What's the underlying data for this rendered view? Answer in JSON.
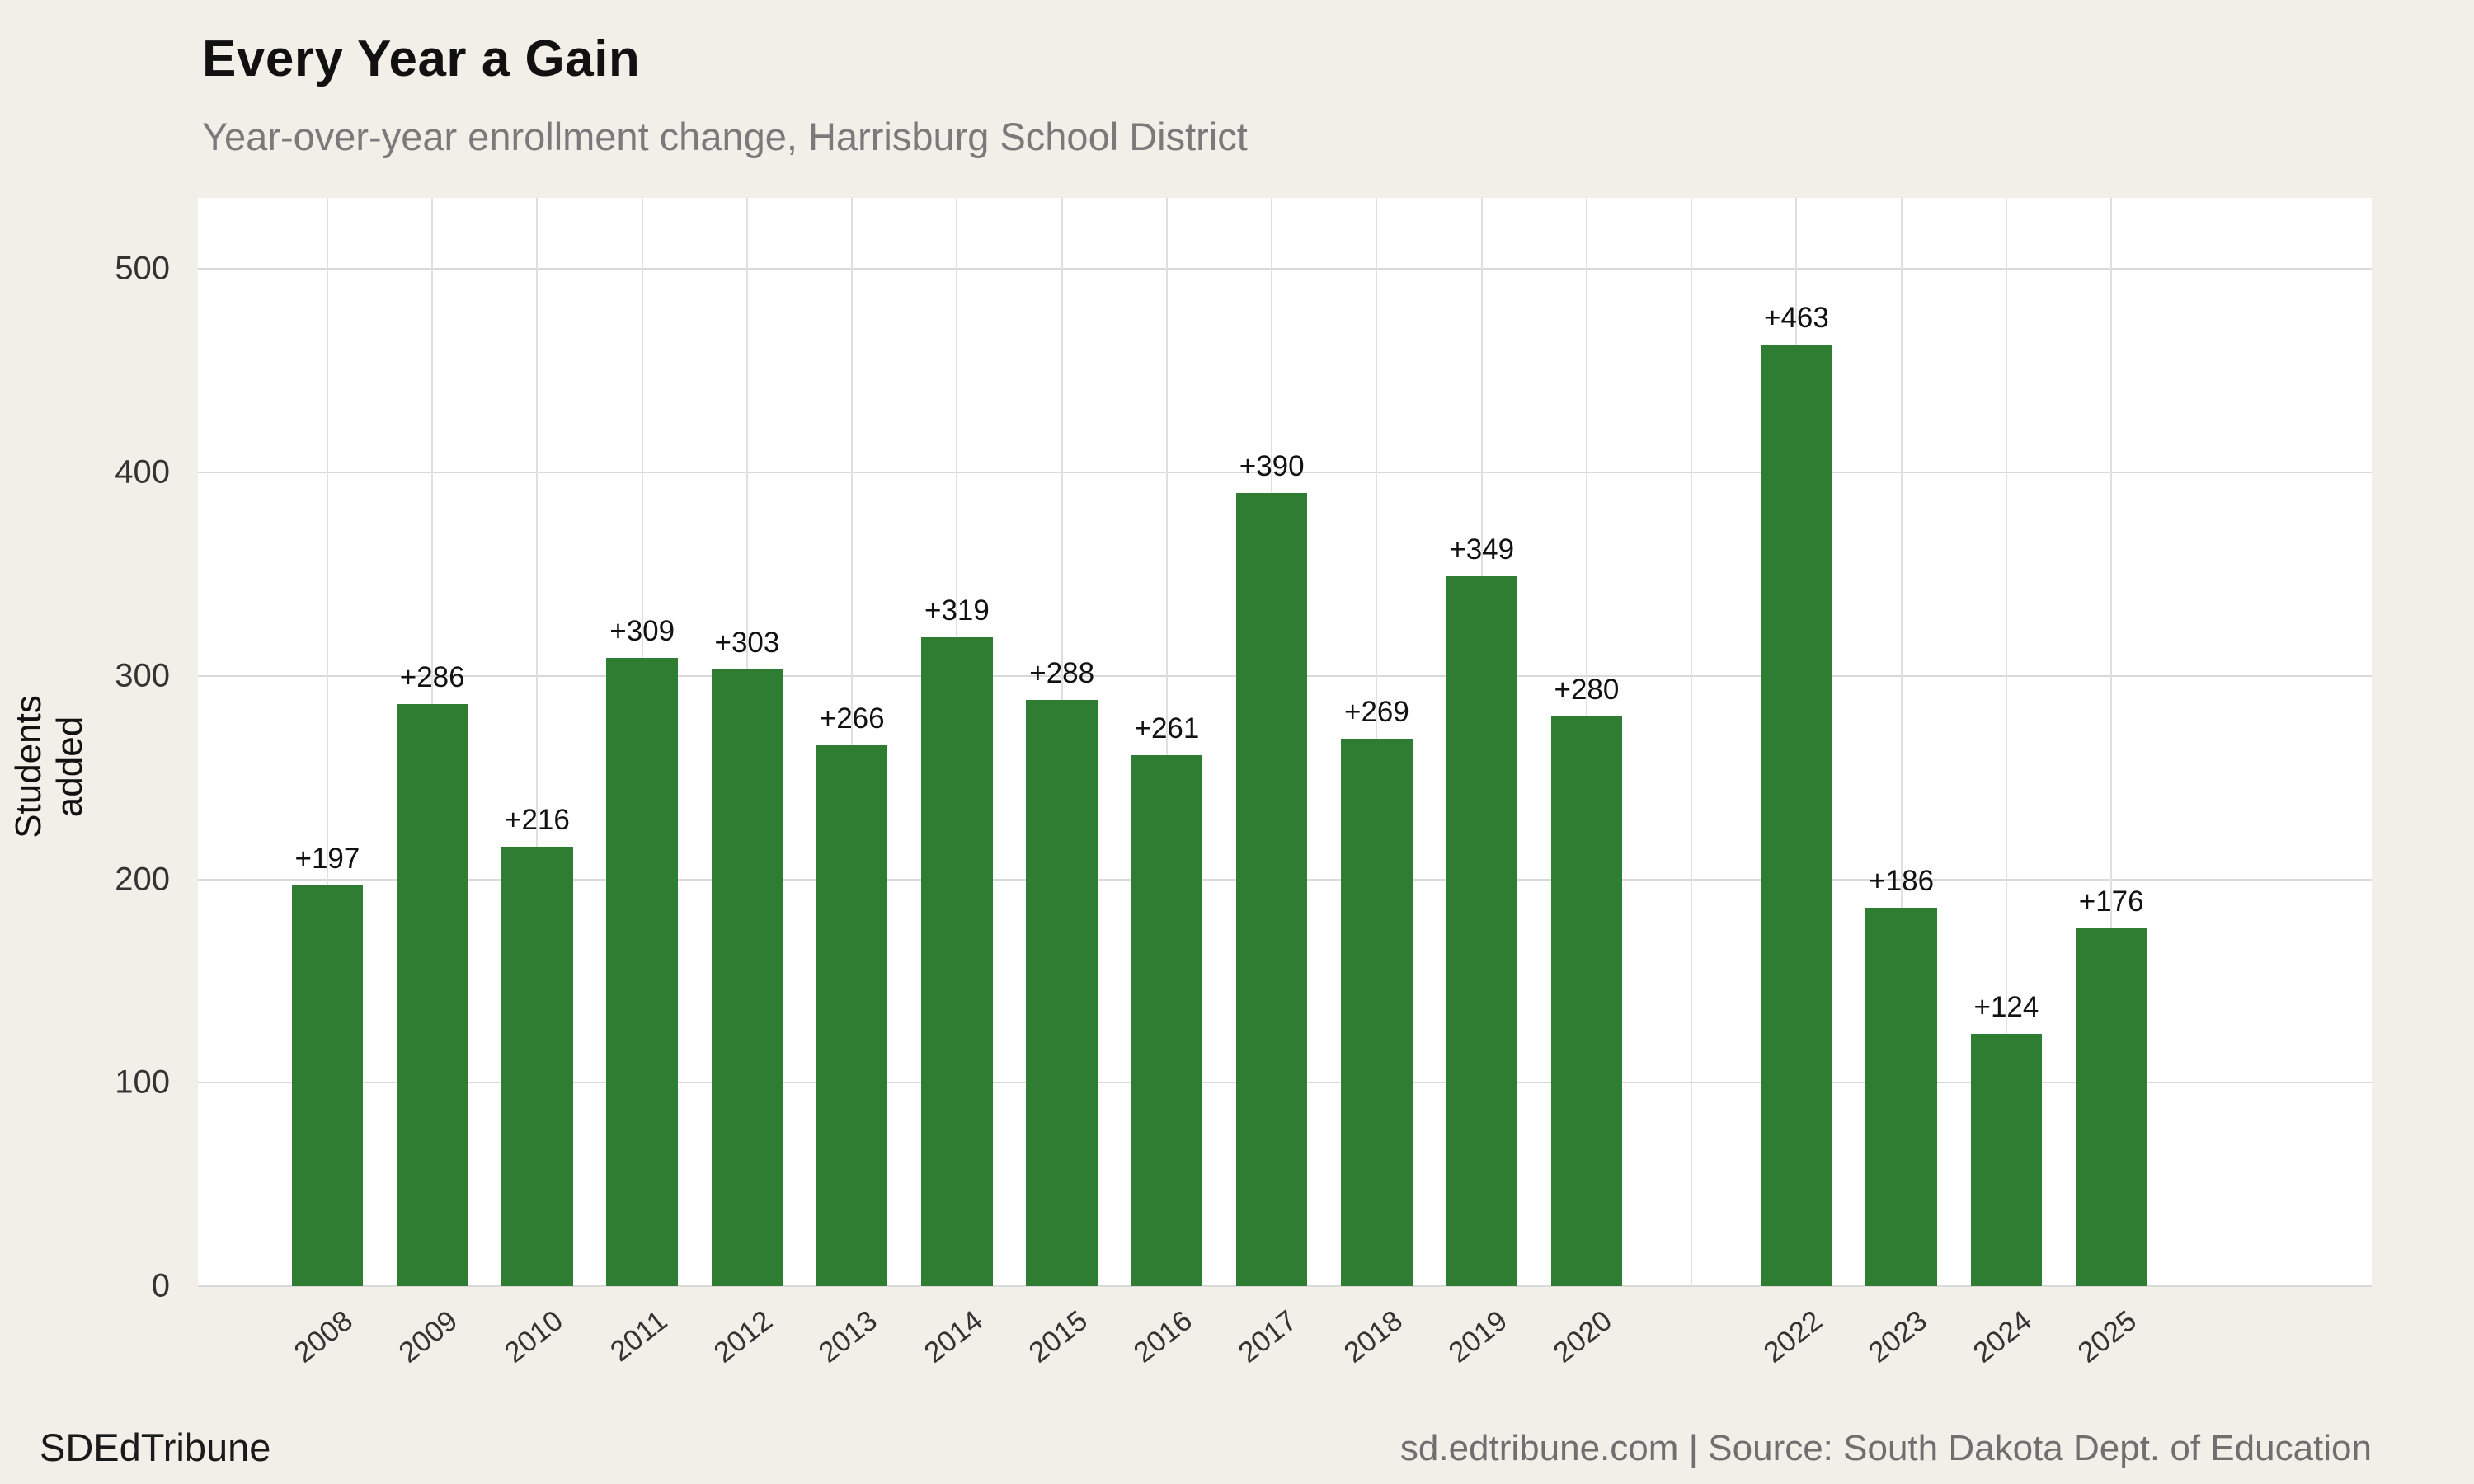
{
  "header": {
    "title": "Every Year a Gain",
    "subtitle": "Year-over-year enrollment change, Harrisburg School District"
  },
  "footer": {
    "brand": "SDEdTribune",
    "attribution": "sd.edtribune.com | Source: South Dakota Dept. of Education"
  },
  "chart_data": {
    "type": "bar",
    "title": "Every Year a Gain",
    "subtitle": "Year-over-year enrollment change, Harrisburg School District",
    "xlabel": "",
    "ylabel": "Students added",
    "ylim": [
      0,
      535
    ],
    "yticks": [
      0,
      100,
      200,
      300,
      400,
      500
    ],
    "grid": "light gray horizontal gridlines at each y tick, faint vertical gridline at each year slot",
    "legend": "none",
    "bar_color": "#2e7d32",
    "background": "#f2efe9",
    "plot_background": "#ffffff",
    "categories": [
      "2008",
      "2009",
      "2010",
      "2011",
      "2012",
      "2013",
      "2014",
      "2015",
      "2016",
      "2017",
      "2018",
      "2019",
      "2020",
      "",
      "2022",
      "2023",
      "2024",
      "2025"
    ],
    "values": [
      197,
      286,
      216,
      309,
      303,
      266,
      319,
      288,
      261,
      390,
      269,
      349,
      280,
      null,
      463,
      186,
      124,
      176
    ],
    "data_labels": [
      "+197",
      "+286",
      "+216",
      "+309",
      "+303",
      "+266",
      "+319",
      "+288",
      "+261",
      "+390",
      "+269",
      "+349",
      "+280",
      "",
      "+463",
      "+186",
      "+124",
      "+176"
    ]
  }
}
